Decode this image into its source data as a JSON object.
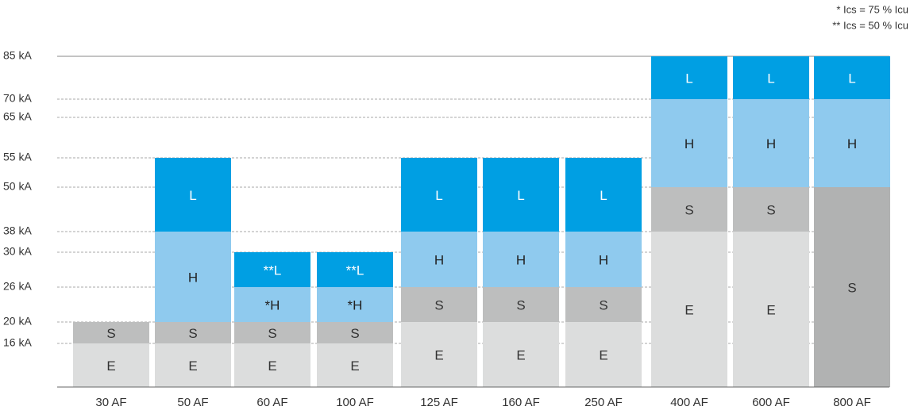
{
  "chart_data": {
    "type": "stacked_bar",
    "notes": [
      "* Ics = 75 % Icu",
      "** Ics = 50 % Icu"
    ],
    "categories": [
      "30 AF",
      "50 AF",
      "60 AF",
      "100 AF",
      "125 AF",
      "160 AF",
      "250 AF",
      "400 AF",
      "600 AF",
      "800 AF"
    ],
    "series": [
      {
        "name": "E",
        "color": "#dcdddd",
        "text_color": "#333333",
        "values": [
          16,
          16,
          16,
          16,
          20,
          20,
          20,
          38,
          38,
          null
        ],
        "labels": [
          "E",
          "E",
          "E",
          "E",
          "E",
          "E",
          "E",
          "E",
          "E",
          null
        ]
      },
      {
        "name": "S",
        "color": "#bdbebe",
        "text_color": "#333333",
        "colors": [
          "#bdbebe",
          "#bdbebe",
          "#bdbebe",
          "#bdbebe",
          "#bdbebe",
          "#bdbebe",
          "#bdbebe",
          "#bdbebe",
          "#bdbebe",
          "#b1b2b2"
        ],
        "values": [
          4,
          4,
          4,
          4,
          6,
          6,
          6,
          12,
          12,
          50
        ],
        "labels": [
          "S",
          "S",
          "S",
          "S",
          "S",
          "S",
          "S",
          "S",
          "S",
          "S"
        ]
      },
      {
        "name": "H",
        "color": "#8fcaee",
        "text_color": "#222222",
        "values": [
          null,
          18,
          6,
          6,
          12,
          12,
          12,
          20,
          20,
          20
        ],
        "labels": [
          null,
          "H",
          "*H",
          "*H",
          "H",
          "H",
          "H",
          "H",
          "H",
          "H"
        ]
      },
      {
        "name": "L",
        "color": "#009fe3",
        "text_color": "#ffffff",
        "values": [
          null,
          17,
          4,
          4,
          17,
          17,
          17,
          15,
          15,
          15
        ],
        "labels": [
          null,
          "L",
          "**L",
          "**L",
          "L",
          "L",
          "L",
          "L",
          "L",
          "L"
        ]
      }
    ],
    "ylim": [
      0,
      85
    ],
    "yticks": [
      {
        "value": 16,
        "label": "16 kA"
      },
      {
        "value": 20,
        "label": "20 kA"
      },
      {
        "value": 26,
        "label": "26 kA"
      },
      {
        "value": 30,
        "label": "30 kA"
      },
      {
        "value": 38,
        "label": "38 kA"
      },
      {
        "value": 50,
        "label": "50 kA"
      },
      {
        "value": 55,
        "label": "55 kA"
      },
      {
        "value": 65,
        "label": "65 kA"
      },
      {
        "value": 70,
        "label": "70 kA"
      },
      {
        "value": 85,
        "label": "85 kA"
      }
    ],
    "grid": true
  }
}
